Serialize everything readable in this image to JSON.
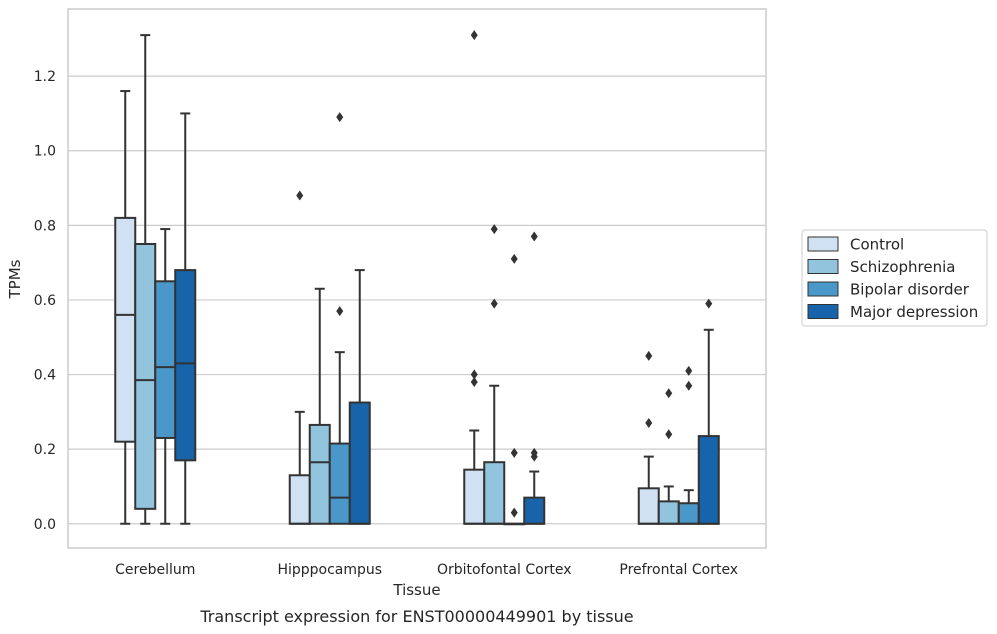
{
  "chart_data": {
    "type": "box",
    "caption": "Transcript expression for ENST00000449901 by tissue",
    "xlabel": "Tissue",
    "ylabel": "TPMs",
    "ylim": [
      -0.065,
      1.38
    ],
    "yticks": [
      0.0,
      0.2,
      0.4,
      0.6,
      0.8,
      1.0,
      1.2
    ],
    "ytick_labels": [
      "0.0",
      "0.2",
      "0.4",
      "0.6",
      "0.8",
      "1.0",
      "1.2"
    ],
    "grid": "horizontal",
    "legend_position": "right",
    "categories": [
      "Cerebellum",
      "Hipppocampus",
      "Orbitofontal Cortex",
      "Prefrontal Cortex"
    ],
    "series": [
      {
        "name": "Control",
        "color": "#cfe1f2",
        "boxes": [
          {
            "whislo": 0.0,
            "q1": 0.22,
            "med": 0.56,
            "q3": 0.82,
            "whishi": 1.16,
            "fliers": []
          },
          {
            "whislo": 0.0,
            "q1": 0.0,
            "med": 0.0,
            "q3": 0.13,
            "whishi": 0.3,
            "fliers": [
              0.88
            ]
          },
          {
            "whislo": 0.0,
            "q1": 0.0,
            "med": 0.0,
            "q3": 0.145,
            "whishi": 0.25,
            "fliers": [
              0.38,
              0.4,
              1.31
            ]
          },
          {
            "whislo": 0.0,
            "q1": 0.0,
            "med": 0.0,
            "q3": 0.095,
            "whishi": 0.18,
            "fliers": [
              0.27,
              0.45
            ]
          }
        ]
      },
      {
        "name": "Schizophrenia",
        "color": "#93c4de",
        "boxes": [
          {
            "whislo": 0.0,
            "q1": 0.04,
            "med": 0.385,
            "q3": 0.75,
            "whishi": 1.31,
            "fliers": []
          },
          {
            "whislo": 0.0,
            "q1": 0.0,
            "med": 0.165,
            "q3": 0.265,
            "whishi": 0.63,
            "fliers": []
          },
          {
            "whislo": 0.0,
            "q1": 0.0,
            "med": 0.0,
            "q3": 0.165,
            "whishi": 0.37,
            "fliers": [
              0.59,
              0.79
            ]
          },
          {
            "whislo": 0.0,
            "q1": 0.0,
            "med": 0.0,
            "q3": 0.06,
            "whishi": 0.1,
            "fliers": [
              0.24,
              0.35
            ]
          }
        ]
      },
      {
        "name": "Bipolar disorder",
        "color": "#4a98c9",
        "boxes": [
          {
            "whislo": 0.0,
            "q1": 0.23,
            "med": 0.42,
            "q3": 0.65,
            "whishi": 0.79,
            "fliers": []
          },
          {
            "whislo": 0.0,
            "q1": 0.0,
            "med": 0.07,
            "q3": 0.215,
            "whishi": 0.46,
            "fliers": [
              0.57,
              1.09
            ]
          },
          {
            "whislo": 0.0,
            "q1": 0.0,
            "med": 0.0,
            "q3": 0.0,
            "whishi": 0.0,
            "fliers": [
              0.03,
              0.19,
              0.71
            ]
          },
          {
            "whislo": 0.0,
            "q1": 0.0,
            "med": 0.0,
            "q3": 0.055,
            "whishi": 0.09,
            "fliers": [
              0.37,
              0.41
            ]
          }
        ]
      },
      {
        "name": "Major depression",
        "color": "#1764ab",
        "boxes": [
          {
            "whislo": 0.0,
            "q1": 0.17,
            "med": 0.43,
            "q3": 0.68,
            "whishi": 1.1,
            "fliers": []
          },
          {
            "whislo": 0.0,
            "q1": 0.0,
            "med": 0.0,
            "q3": 0.325,
            "whishi": 0.68,
            "fliers": []
          },
          {
            "whislo": 0.0,
            "q1": 0.0,
            "med": 0.0,
            "q3": 0.07,
            "whishi": 0.14,
            "fliers": [
              0.18,
              0.19,
              0.77
            ]
          },
          {
            "whislo": 0.0,
            "q1": 0.0,
            "med": 0.0,
            "q3": 0.235,
            "whishi": 0.52,
            "fliers": [
              0.59
            ]
          }
        ]
      }
    ]
  },
  "colors": {
    "edge": "#333333",
    "grid": "#cccccc",
    "frame": "#cccccc"
  }
}
